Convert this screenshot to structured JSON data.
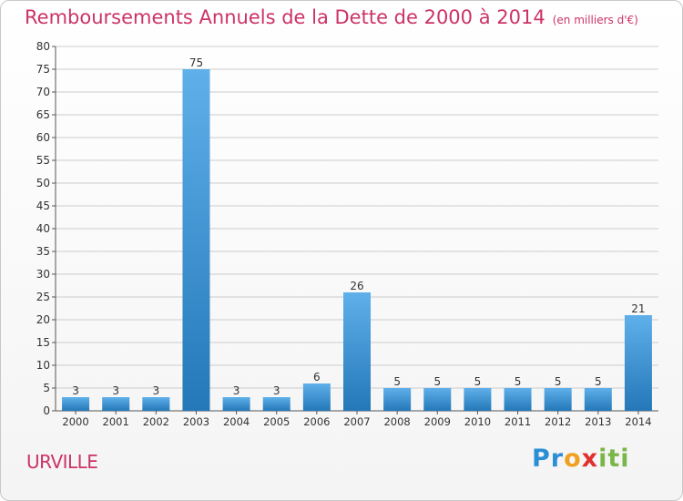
{
  "title": "Remboursements Annuels de la Dette de 2000 à 2014",
  "subtitle": "(en milliers d'€)",
  "city": "URVILLE",
  "logo": {
    "text": "Proxiti",
    "colors": [
      "#2b8fd6",
      "#e03030",
      "#f0a020",
      "#7ab648"
    ]
  },
  "colors": {
    "title": "#cc3366",
    "bar_light": "#5fb0ea",
    "bar_dark": "#2478b8",
    "grid": "#cccccc",
    "axis_text": "#333333"
  },
  "chart_data": {
    "type": "bar",
    "title": "Remboursements Annuels de la Dette de 2000 à 2014",
    "subtitle": "(en milliers d'€)",
    "xlabel": "",
    "ylabel": "",
    "categories": [
      "2000",
      "2001",
      "2002",
      "2003",
      "2004",
      "2005",
      "2006",
      "2007",
      "2008",
      "2009",
      "2010",
      "2011",
      "2012",
      "2013",
      "2014"
    ],
    "values": [
      3,
      3,
      3,
      75,
      3,
      3,
      6,
      26,
      5,
      5,
      5,
      5,
      5,
      5,
      21
    ],
    "data_labels": [
      "3",
      "3",
      "3",
      "75",
      "3",
      "3",
      "6",
      "26",
      "5",
      "5",
      "5",
      "5",
      "5",
      "5",
      "21"
    ],
    "ylim": [
      0,
      80
    ],
    "yticks": [
      0,
      5,
      10,
      15,
      20,
      25,
      30,
      35,
      40,
      45,
      50,
      55,
      60,
      65,
      70,
      75,
      80
    ],
    "grid": true,
    "legend": "none"
  }
}
